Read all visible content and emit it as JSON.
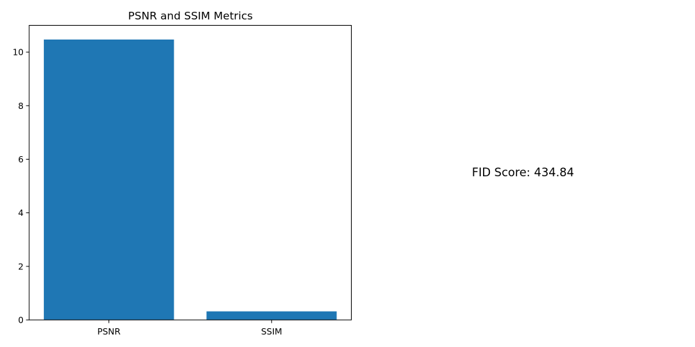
{
  "chart_data": {
    "type": "bar",
    "title": "PSNR and SSIM Metrics",
    "categories": [
      "PSNR",
      "SSIM"
    ],
    "values": [
      10.47,
      0.32
    ],
    "xlabel": "",
    "ylabel": "",
    "ylim": [
      0,
      11
    ],
    "yticks": [
      0,
      2,
      4,
      6,
      8,
      10
    ],
    "grid": false,
    "bar_color": "#1f77b4"
  },
  "annotation": {
    "fid_text": "FID Score: 434.84"
  }
}
